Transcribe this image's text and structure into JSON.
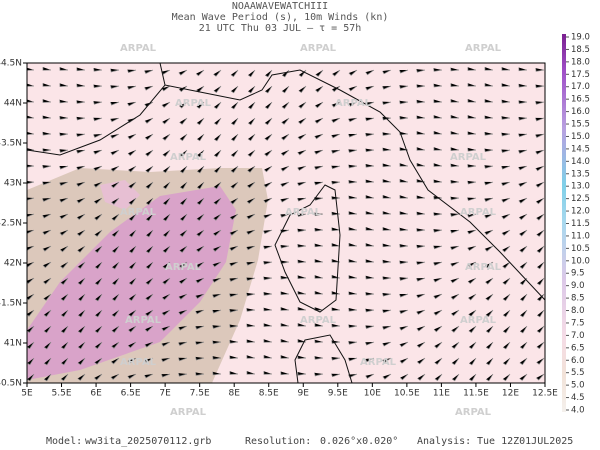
{
  "header": {
    "lines": [
      "NOAAWAVEWATCHIII",
      "Mean Wave Period (s), 10m Winds (kn)",
      "21 UTC Thu 03 JUL  –  τ = 57h"
    ]
  },
  "watermark": "ARPAL",
  "lon_labels": [
    "5E",
    "5.5E",
    "6E",
    "6.5E",
    "7E",
    "7.5E",
    "8E",
    "8.5E",
    "9E",
    "9.5E",
    "10E",
    "10.5E",
    "11E",
    "11.5E",
    "12E",
    "12.5E"
  ],
  "lat_labels": [
    "44.5N",
    "44N",
    "43.5N",
    "43N",
    "42.5N",
    "42N",
    "41.5N",
    "41N",
    "40.5N"
  ],
  "colorbar": {
    "labels": [
      "19.0",
      "18.5",
      "18.0",
      "17.5",
      "17.0",
      "16.5",
      "16.0",
      "15.5",
      "15.0",
      "14.5",
      "14.0",
      "13.5",
      "13.0",
      "12.5",
      "12.0",
      "11.5",
      "11.0",
      "10.5",
      "10.0",
      "9.5",
      "9.0",
      "8.5",
      "8.0",
      "7.5",
      "7.0",
      "6.5",
      "6.0",
      "5.5",
      "5.0",
      "4.5",
      "4.0"
    ]
  },
  "footer": {
    "model_label": "Model:",
    "model": "ww3ita_2025070112.grb",
    "resolution_label": "Resolution:",
    "resolution": "0.026°x0.020°",
    "analysis_label": "Analysis:",
    "analysis": "Tue 12Z01JUL2025"
  }
}
